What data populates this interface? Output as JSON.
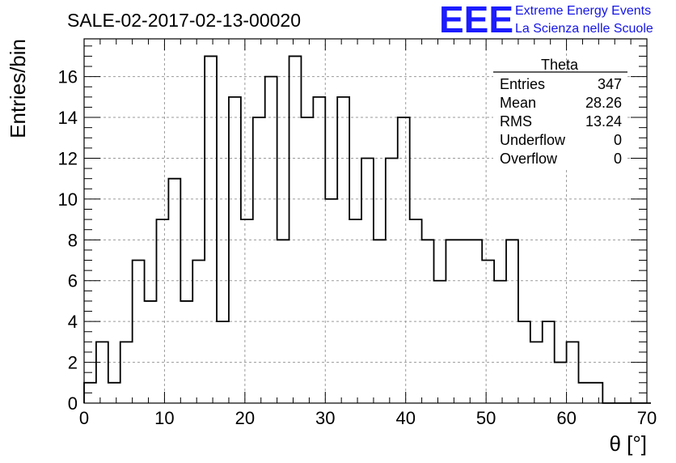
{
  "title": "SALE-02-2017-02-13-00020",
  "logo": {
    "mark": "EEE",
    "line1": "Extreme Energy Events",
    "line2": "La Scienza nelle Scuole",
    "color": "#1c1cff"
  },
  "chart_data": {
    "type": "histogram",
    "xlabel": "θ [°]",
    "ylabel": "Entries/bin",
    "xlim": [
      0,
      70
    ],
    "ylim": [
      0,
      17.85
    ],
    "x_ticks": [
      0,
      10,
      20,
      30,
      40,
      50,
      60,
      70
    ],
    "y_ticks": [
      0,
      2,
      4,
      6,
      8,
      10,
      12,
      14,
      16
    ],
    "grid": true,
    "bin_width": 1.5,
    "bin_start": 0,
    "values": [
      1,
      3,
      1,
      3,
      7,
      5,
      9,
      11,
      5,
      7,
      17,
      4,
      15,
      9,
      14,
      16,
      8,
      17,
      14,
      15,
      10,
      15,
      9,
      12,
      8,
      12,
      14,
      9,
      8,
      6,
      8,
      8,
      8,
      7,
      6,
      8,
      4,
      3,
      4,
      2,
      3,
      1,
      1,
      0,
      0,
      0,
      0
    ],
    "stats": {
      "name": "Theta",
      "rows": [
        {
          "label": "Entries",
          "value": "347"
        },
        {
          "label": "Mean",
          "value": "28.26"
        },
        {
          "label": "RMS",
          "value": "13.24"
        },
        {
          "label": "Underflow",
          "value": "0"
        },
        {
          "label": "Overflow",
          "value": "0"
        }
      ]
    }
  }
}
